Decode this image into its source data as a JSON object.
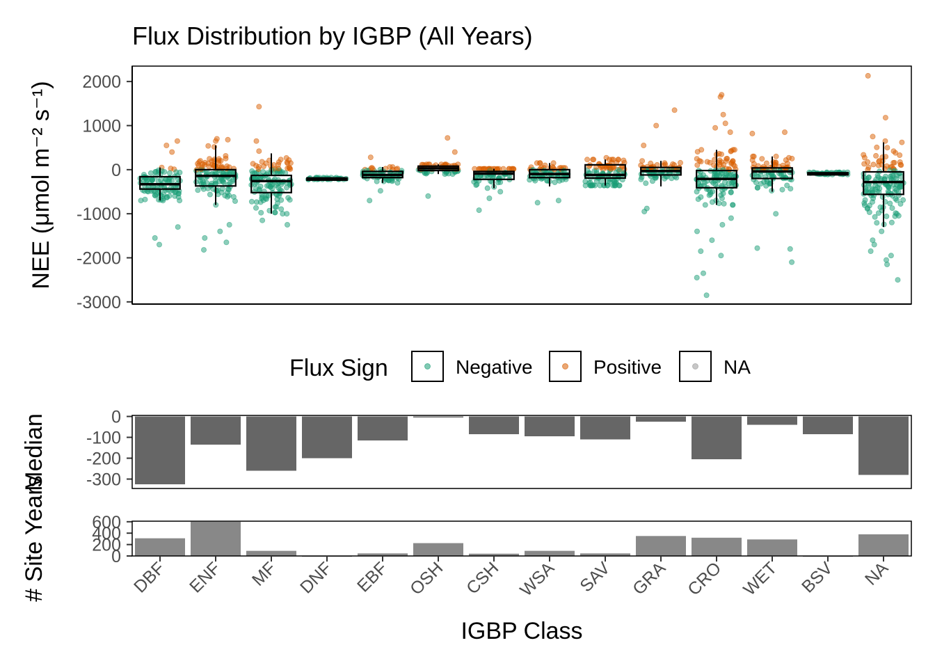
{
  "chart_data": [
    {
      "type": "boxplot",
      "title": "Flux Distribution by IGBP (All Years)",
      "ylabel": "NEE (μmol m⁻² s⁻¹)",
      "xlabel": "",
      "categories": [
        "DBF",
        "ENF",
        "MF",
        "DNF",
        "EBF",
        "OSH",
        "CSH",
        "WSA",
        "SAV",
        "GRA",
        "CRO",
        "WET",
        "BSV",
        "NA"
      ],
      "ylim": [
        -3050,
        2350
      ],
      "yticks": [
        2000,
        1000,
        0,
        -1000,
        -2000,
        -3000
      ],
      "ytick_labels": [
        "2000",
        "1000",
        "0",
        "-1000",
        "-2000",
        "-3000"
      ],
      "grid": false,
      "boxes": [
        {
          "q1": -440,
          "median": -330,
          "q3": -160,
          "whisker_low": -700,
          "whisker_high": 50
        },
        {
          "q1": -370,
          "median": -140,
          "q3": 0,
          "whisker_low": -800,
          "whisker_high": 550
        },
        {
          "q1": -520,
          "median": -260,
          "q3": -130,
          "whisker_low": -1000,
          "whisker_high": 370
        },
        {
          "q1": -215,
          "median": -200,
          "q3": -190,
          "whisker_low": -220,
          "whisker_high": -180
        },
        {
          "q1": -180,
          "median": -120,
          "q3": -40,
          "whisker_low": -300,
          "whisker_high": 60
        },
        {
          "q1": -20,
          "median": 30,
          "q3": 80,
          "whisker_low": -100,
          "whisker_high": 120
        },
        {
          "q1": -220,
          "median": -90,
          "q3": -40,
          "whisker_low": -420,
          "whisker_high": 20
        },
        {
          "q1": -180,
          "median": -100,
          "q3": 0,
          "whisker_low": -380,
          "whisker_high": 150
        },
        {
          "q1": -190,
          "median": -120,
          "q3": 110,
          "whisker_low": -360,
          "whisker_high": 230
        },
        {
          "q1": -120,
          "median": -30,
          "q3": 50,
          "whisker_low": -380,
          "whisker_high": 200
        },
        {
          "q1": -410,
          "median": -210,
          "q3": -20,
          "whisker_low": -800,
          "whisker_high": 450
        },
        {
          "q1": -200,
          "median": -40,
          "q3": 40,
          "whisker_low": -500,
          "whisker_high": 300
        },
        {
          "q1": -100,
          "median": -85,
          "q3": -70,
          "whisker_low": -110,
          "whisker_high": -60
        },
        {
          "q1": -560,
          "median": -280,
          "q3": -50,
          "whisker_low": -1300,
          "whisker_high": 620
        }
      ],
      "outliers": [
        {
          "category": "DBF",
          "values": [
            -1700,
            -1550,
            -1300,
            650,
            550,
            400
          ]
        },
        {
          "category": "ENF",
          "values": [
            -1820,
            -1650,
            -1550,
            -1400,
            -1250,
            700,
            680,
            650
          ]
        },
        {
          "category": "MF",
          "values": [
            -1250,
            -1150,
            1430,
            650,
            420
          ]
        },
        {
          "category": "EBF",
          "values": [
            -700,
            -480,
            280
          ]
        },
        {
          "category": "OSH",
          "values": [
            -600,
            720,
            400
          ]
        },
        {
          "category": "CSH",
          "values": [
            -920,
            -650,
            -500
          ]
        },
        {
          "category": "WSA",
          "values": [
            -750,
            -700
          ]
        },
        {
          "category": "SAV",
          "values": [
            270
          ]
        },
        {
          "category": "GRA",
          "values": [
            -950,
            -880,
            1350,
            1000,
            550
          ]
        },
        {
          "category": "CRO",
          "values": [
            -2850,
            -2450,
            -2350,
            -1950,
            -1850,
            -1600,
            -1400,
            -1250,
            -1100,
            1700,
            1650,
            1250,
            1050,
            950,
            850
          ]
        },
        {
          "category": "WET",
          "values": [
            -2100,
            -1800,
            -1780,
            -1000,
            850,
            820
          ]
        },
        {
          "category": "NA",
          "values": [
            -2500,
            -2150,
            -2050,
            -1950,
            -1850,
            -1700,
            -1600,
            -1400,
            -1200,
            2130,
            1180,
            750,
            650,
            500
          ]
        }
      ],
      "point_colors": {
        "Negative": "#1b9e77",
        "Positive": "#d95f02",
        "NA": "#999999"
      },
      "legend": {
        "title": "Flux Sign",
        "position": "bottom",
        "entries": [
          {
            "label": "Negative",
            "color": "#1b9e77"
          },
          {
            "label": "Positive",
            "color": "#d95f02"
          },
          {
            "label": "NA",
            "color": "#999999"
          }
        ]
      }
    },
    {
      "type": "bar",
      "ylabel": "Median",
      "categories": [
        "DBF",
        "ENF",
        "MF",
        "DNF",
        "EBF",
        "OSH",
        "CSH",
        "WSA",
        "SAV",
        "GRA",
        "CRO",
        "WET",
        "BSV",
        "NA"
      ],
      "values": [
        -325,
        -135,
        -260,
        -200,
        -115,
        -5,
        -85,
        -95,
        -110,
        -25,
        -205,
        -40,
        -85,
        -280
      ],
      "ylim": [
        -345,
        5
      ],
      "yticks": [
        0,
        -100,
        -200,
        -300
      ],
      "ytick_labels": [
        "0",
        "-100",
        "-200",
        "-300"
      ],
      "bar_color": "#666666"
    },
    {
      "type": "bar",
      "ylabel": "# Site Years",
      "xlabel": "IGBP Class",
      "categories": [
        "DBF",
        "ENF",
        "MF",
        "DNF",
        "EBF",
        "OSH",
        "CSH",
        "WSA",
        "SAV",
        "GRA",
        "CRO",
        "WET",
        "BSV",
        "NA"
      ],
      "values": [
        310,
        600,
        90,
        5,
        45,
        225,
        40,
        90,
        45,
        350,
        320,
        290,
        5,
        380
      ],
      "ylim": [
        0,
        610
      ],
      "yticks": [
        600,
        400,
        200,
        0
      ],
      "ytick_labels": [
        "600",
        "400",
        "200",
        "0"
      ],
      "bar_color": "#888888"
    }
  ]
}
